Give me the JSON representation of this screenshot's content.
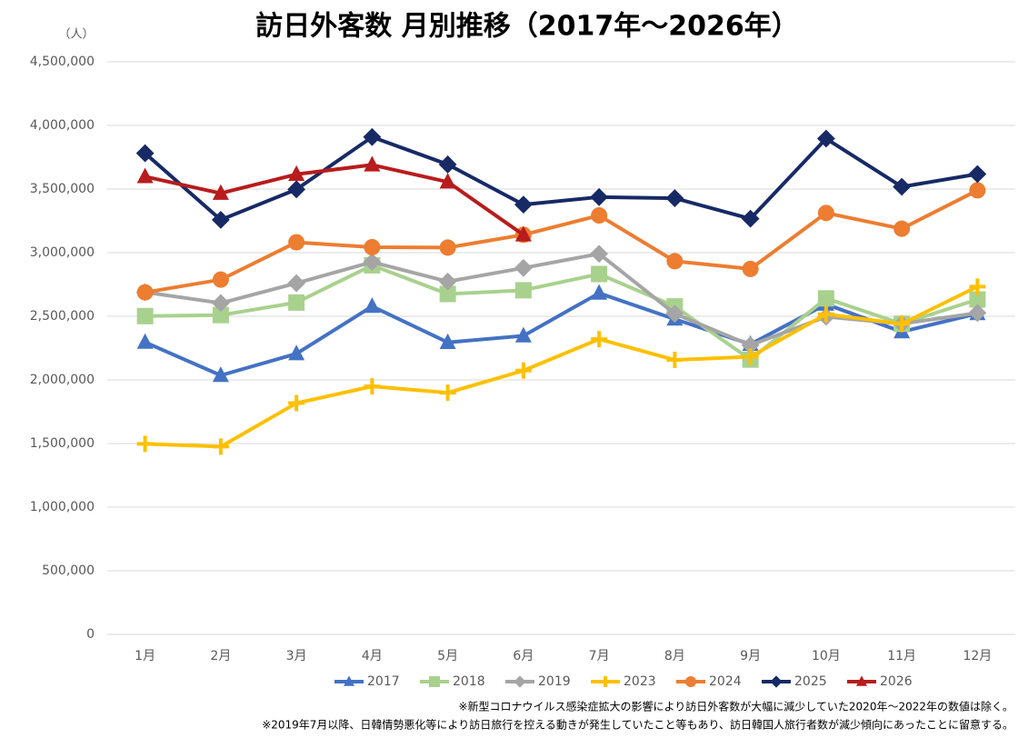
{
  "chart_data": {
    "type": "line",
    "title": "訪日外客数 月別推移（2017年～2026年）",
    "y_unit": "（人）",
    "notes": [
      "※新型コロナウイルス感染症拡大の影響により訪日外客数が大幅に減少していた2020年～2022年の数値は除く。",
      "※2019年7月以降、日韓情勢悪化等により訪日旅行を控える動きが発生していたこと等もあり、訪日韓国人旅行者数が減少傾向にあったことに留意する。"
    ],
    "categories": [
      "1月",
      "2月",
      "3月",
      "4月",
      "5月",
      "6月",
      "7月",
      "8月",
      "9月",
      "10月",
      "11月",
      "12月"
    ],
    "ylim": [
      0,
      4500000
    ],
    "yticks": [
      0,
      {
        "value": 500000,
        "label": "500,000"
      },
      {
        "value": 1000000,
        "label": "1,000,000"
      },
      {
        "value": 1500000,
        "label": "1,500,000"
      },
      {
        "value": 2000000,
        "label": "2,000,000"
      },
      {
        "value": 2500000,
        "label": "2,500,000"
      },
      {
        "value": 3000000,
        "label": "3,000,000"
      },
      {
        "value": 3500000,
        "label": "3,500,000"
      },
      {
        "value": 4000000,
        "label": "4,000,000"
      },
      {
        "value": 4500000,
        "label": "4,500,000"
      }
    ],
    "grid": true,
    "legend": "bottom",
    "series": [
      {
        "name": "2017",
        "color": "#4472c4",
        "marker": "triangle",
        "values": [
          2295700,
          2035800,
          2205700,
          2578000,
          2294700,
          2346400,
          2681700,
          2478000,
          2280000,
          2595100,
          2378100,
          2521400
        ]
      },
      {
        "name": "2018",
        "color": "#a9d18e",
        "marker": "square",
        "values": [
          2501400,
          2509300,
          2608000,
          2900700,
          2675100,
          2704600,
          2832000,
          2578000,
          2159600,
          2640600,
          2441300,
          2632000
        ]
      },
      {
        "name": "2019",
        "color": "#a5a5a5",
        "marker": "diamond",
        "values": [
          2689300,
          2604000,
          2760100,
          2926700,
          2773100,
          2880000,
          2991200,
          2520100,
          2272900,
          2496600,
          2441300,
          2526400
        ]
      },
      {
        "name": "2023",
        "color": "#ffc000",
        "marker": "plus",
        "values": [
          1497500,
          1475500,
          1817500,
          1949100,
          1898900,
          2073300,
          2320600,
          2156900,
          2182300,
          2516500,
          2440600,
          2733000
        ]
      },
      {
        "name": "2024",
        "color": "#ed7d31",
        "marker": "circle",
        "values": [
          2688100,
          2788000,
          3081600,
          3042900,
          3040100,
          3140500,
          3292500,
          2933000,
          2872200,
          3312000,
          3188200,
          3489800
        ]
      },
      {
        "name": "2025",
        "color": "#172a66",
        "marker": "diamond",
        "values": [
          3781600,
          3258100,
          3497600,
          3908900,
          3693300,
          3377800,
          3437000,
          3428000,
          3266800,
          3896300,
          3518000,
          3617700
        ]
      },
      {
        "name": "2026",
        "color": "#b81c1c",
        "marker": "triangle",
        "values": [
          3597500,
          3466700,
          3616000,
          3690000,
          3556000,
          3140000,
          null,
          null,
          null,
          null,
          null,
          null
        ]
      }
    ]
  }
}
